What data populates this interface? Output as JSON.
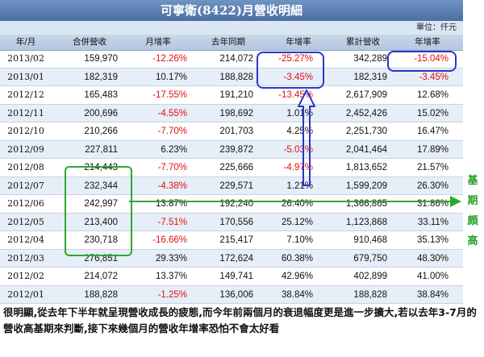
{
  "title": "可寧衛(8422)月營收明細",
  "unit": "單位：仟元",
  "headers": [
    "年/月",
    "合併營收",
    "月增率",
    "去年同期",
    "年增率",
    "累計營收",
    "年增率"
  ],
  "rows": [
    {
      "month": "2013/02",
      "revenue": "159,970",
      "mom": "-12.26%",
      "last_year": "214,072",
      "yoy": "-25.27%",
      "cumulative": "342,289",
      "cum_yoy": "-15.04%"
    },
    {
      "month": "2013/01",
      "revenue": "182,319",
      "mom": "10.17%",
      "last_year": "188,828",
      "yoy": "-3.45%",
      "cumulative": "182,319",
      "cum_yoy": "-3.45%"
    },
    {
      "month": "2012/12",
      "revenue": "165,483",
      "mom": "-17.55%",
      "last_year": "191,210",
      "yoy": "-13.45%",
      "cumulative": "2,617,909",
      "cum_yoy": "12.68%"
    },
    {
      "month": "2012/11",
      "revenue": "200,696",
      "mom": "-4.55%",
      "last_year": "198,692",
      "yoy": "1.01%",
      "cumulative": "2,452,426",
      "cum_yoy": "15.02%"
    },
    {
      "month": "2012/10",
      "revenue": "210,266",
      "mom": "-7.70%",
      "last_year": "201,703",
      "yoy": "4.25%",
      "cumulative": "2,251,730",
      "cum_yoy": "16.47%"
    },
    {
      "month": "2012/09",
      "revenue": "227,811",
      "mom": "6.23%",
      "last_year": "239,872",
      "yoy": "-5.03%",
      "cumulative": "2,041,464",
      "cum_yoy": "17.89%"
    },
    {
      "month": "2012/08",
      "revenue": "214,443",
      "mom": "-7.70%",
      "last_year": "225,666",
      "yoy": "-4.97%",
      "cumulative": "1,813,652",
      "cum_yoy": "21.57%"
    },
    {
      "month": "2012/07",
      "revenue": "232,344",
      "mom": "-4.38%",
      "last_year": "229,571",
      "yoy": "1.21%",
      "cumulative": "1,599,209",
      "cum_yoy": "26.30%"
    },
    {
      "month": "2012/06",
      "revenue": "242,997",
      "mom": "13.87%",
      "last_year": "192,240",
      "yoy": "26.40%",
      "cumulative": "1,366,865",
      "cum_yoy": "31.86%"
    },
    {
      "month": "2012/05",
      "revenue": "213,400",
      "mom": "-7.51%",
      "last_year": "170,556",
      "yoy": "25.12%",
      "cumulative": "1,123,868",
      "cum_yoy": "33.11%"
    },
    {
      "month": "2012/04",
      "revenue": "230,718",
      "mom": "-16.66%",
      "last_year": "215,417",
      "yoy": "7.10%",
      "cumulative": "910,468",
      "cum_yoy": "35.13%"
    },
    {
      "month": "2012/03",
      "revenue": "276,851",
      "mom": "29.33%",
      "last_year": "172,624",
      "yoy": "60.38%",
      "cumulative": "679,750",
      "cum_yoy": "48.30%"
    },
    {
      "month": "2012/02",
      "revenue": "214,072",
      "mom": "13.37%",
      "last_year": "149,741",
      "yoy": "42.96%",
      "cumulative": "402,899",
      "cum_yoy": "41.00%"
    },
    {
      "month": "2012/01",
      "revenue": "188,828",
      "mom": "-1.25%",
      "last_year": "136,006",
      "yoy": "38.84%",
      "cumulative": "188,828",
      "cum_yoy": "38.84%"
    }
  ],
  "side_label": [
    "基",
    "期",
    "頗",
    "高"
  ],
  "comment": "很明顯,從去年下半年就呈現營收成長的疲態,而今年前兩個月的衰退幅度更是進一步擴大,若以去年3-7月的營收高基期來判斷,接下來幾個月的營收年增率恐怕不會太好看",
  "colors": {
    "negative": "#e01010",
    "annotation_blue": "#2a35c8",
    "annotation_green": "#2fa82f"
  }
}
